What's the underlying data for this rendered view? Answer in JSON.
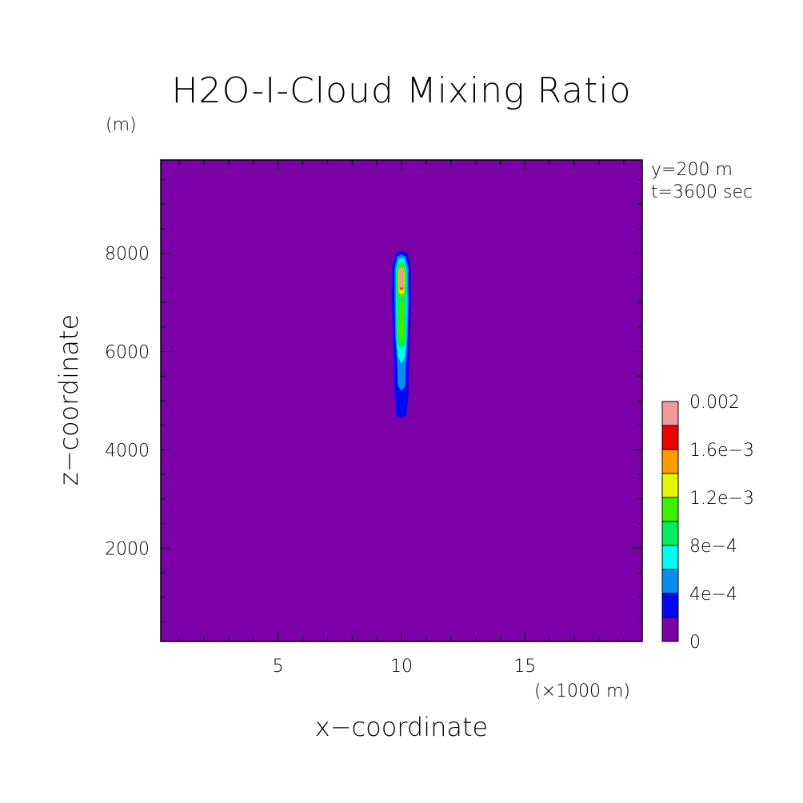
{
  "chart_data": {
    "type": "heatmap",
    "title": "H2O-I-Cloud Mixing Ratio",
    "xlabel": "x−coordinate",
    "ylabel": "z−coordinate",
    "x_unit": "(×1000 m)",
    "y_unit": "(m)",
    "annotations": [
      "y=200 m",
      "t=3600 sec"
    ],
    "xlim": [
      0.25,
      19.75
    ],
    "ylim": [
      100,
      9900
    ],
    "x_ticks": [
      5,
      10,
      15
    ],
    "y_ticks": [
      2000,
      4000,
      6000,
      8000
    ],
    "colorbar": {
      "levels": [
        0,
        0.0002,
        0.0004,
        0.0006,
        0.0008,
        0.001,
        0.0012,
        0.0014,
        0.0016,
        0.0018,
        0.002
      ],
      "tick_values": [
        0,
        0.0004,
        0.0008,
        0.0012,
        0.0016,
        0.002
      ],
      "tick_labels": [
        "0",
        "4e−4",
        "8e−4",
        "1.2e−3",
        "1.6e−3",
        "0.002"
      ],
      "colors": [
        "#7b00a7",
        "#0008f4",
        "#0a8cf5",
        "#00fbf2",
        "#00ee5c",
        "#3fef00",
        "#e1f700",
        "#fe9a00",
        "#f00000",
        "#f29a9a"
      ]
    },
    "contours": [
      {
        "level": 0.0002,
        "points": [
          [
            10.0,
            4650
          ],
          [
            9.8,
            4700
          ],
          [
            9.72,
            5100
          ],
          [
            9.7,
            5700
          ],
          [
            9.65,
            6300
          ],
          [
            9.62,
            7000
          ],
          [
            9.62,
            7700
          ],
          [
            9.75,
            8000
          ],
          [
            10.0,
            8050
          ],
          [
            10.25,
            8000
          ],
          [
            10.38,
            7700
          ],
          [
            10.38,
            7000
          ],
          [
            10.35,
            6300
          ],
          [
            10.3,
            5700
          ],
          [
            10.28,
            5100
          ],
          [
            10.2,
            4700
          ]
        ]
      },
      {
        "level": 0.0004,
        "points": [
          [
            10.0,
            5200
          ],
          [
            9.85,
            5300
          ],
          [
            9.82,
            5800
          ],
          [
            9.75,
            6300
          ],
          [
            9.72,
            7000
          ],
          [
            9.72,
            7700
          ],
          [
            9.82,
            7930
          ],
          [
            10.0,
            7980
          ],
          [
            10.18,
            7930
          ],
          [
            10.28,
            7700
          ],
          [
            10.28,
            7000
          ],
          [
            10.25,
            6300
          ],
          [
            10.18,
            5800
          ],
          [
            10.15,
            5300
          ]
        ]
      },
      {
        "level": 0.0006,
        "points": [
          [
            10.0,
            5750
          ],
          [
            9.85,
            5900
          ],
          [
            9.8,
            6300
          ],
          [
            9.78,
            7000
          ],
          [
            9.78,
            7650
          ],
          [
            9.88,
            7880
          ],
          [
            10.0,
            7910
          ],
          [
            10.12,
            7880
          ],
          [
            10.22,
            7650
          ],
          [
            10.22,
            7000
          ],
          [
            10.2,
            6300
          ],
          [
            10.15,
            5900
          ]
        ]
      },
      {
        "level": 0.0008,
        "points": [
          [
            10.0,
            6050
          ],
          [
            9.85,
            6150
          ],
          [
            9.82,
            6500
          ],
          [
            9.85,
            6800
          ],
          [
            9.8,
            7200
          ],
          [
            9.8,
            7600
          ],
          [
            9.9,
            7800
          ],
          [
            10.0,
            7830
          ],
          [
            10.1,
            7800
          ],
          [
            10.2,
            7600
          ],
          [
            10.2,
            7200
          ],
          [
            10.15,
            6800
          ],
          [
            10.18,
            6500
          ],
          [
            10.15,
            6150
          ]
        ]
      },
      {
        "level": 0.001,
        "points": [
          [
            10.0,
            6200
          ],
          [
            9.9,
            6280
          ],
          [
            9.87,
            6500
          ],
          [
            9.92,
            6700
          ],
          [
            9.92,
            7000
          ],
          [
            10.08,
            7000
          ],
          [
            10.08,
            6700
          ],
          [
            10.13,
            6500
          ],
          [
            10.1,
            6280
          ]
        ]
      },
      {
        "level": 0.001,
        "points": [
          [
            9.88,
            7100
          ],
          [
            9.83,
            7350
          ],
          [
            9.84,
            7650
          ],
          [
            9.92,
            7780
          ],
          [
            10.0,
            7800
          ],
          [
            10.08,
            7780
          ],
          [
            10.16,
            7650
          ],
          [
            10.17,
            7350
          ],
          [
            10.12,
            7100
          ]
        ]
      },
      {
        "level": 0.0012,
        "points": [
          [
            9.9,
            7180
          ],
          [
            9.87,
            7400
          ],
          [
            9.88,
            7620
          ],
          [
            10.0,
            7720
          ],
          [
            10.12,
            7620
          ],
          [
            10.13,
            7400
          ],
          [
            10.1,
            7180
          ]
        ]
      },
      {
        "level": 0.0014,
        "points": [
          [
            9.93,
            7240
          ],
          [
            9.9,
            7450
          ],
          [
            9.93,
            7650
          ],
          [
            10.07,
            7650
          ],
          [
            10.1,
            7450
          ],
          [
            10.07,
            7240
          ]
        ]
      },
      {
        "level": 0.0016,
        "points": [
          [
            9.93,
            7280
          ],
          [
            9.93,
            7650
          ],
          [
            10.07,
            7650
          ],
          [
            10.07,
            7280
          ]
        ]
      },
      {
        "level": 0.0018,
        "points": [
          [
            9.9,
            7300
          ],
          [
            9.9,
            7700
          ],
          [
            10.1,
            7700
          ],
          [
            10.1,
            7300
          ]
        ]
      },
      {
        "level": 0.002,
        "points": [
          [
            9.93,
            7380
          ],
          [
            9.93,
            7560
          ],
          [
            10.07,
            7560
          ],
          [
            10.07,
            7380
          ]
        ]
      }
    ]
  }
}
